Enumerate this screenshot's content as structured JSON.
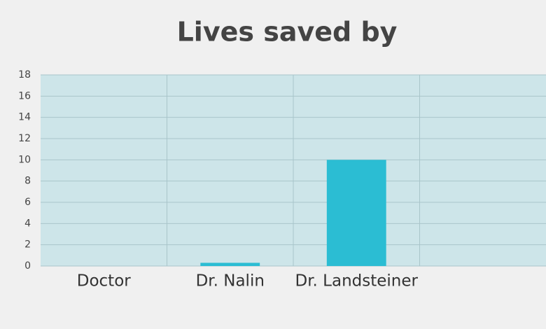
{
  "chart_data": {
    "type": "bar",
    "title": "Lives saved by",
    "categories": [
      "Doctor",
      "Dr. Nalin",
      "Dr. Landsteiner",
      null
    ],
    "values": [
      0,
      0.3,
      10,
      null
    ],
    "color": "#2bbdd3",
    "ylim": [
      0,
      18
    ],
    "yticks": [
      0,
      2,
      4,
      6,
      8,
      10,
      12,
      14,
      16,
      18
    ],
    "grid": true
  }
}
